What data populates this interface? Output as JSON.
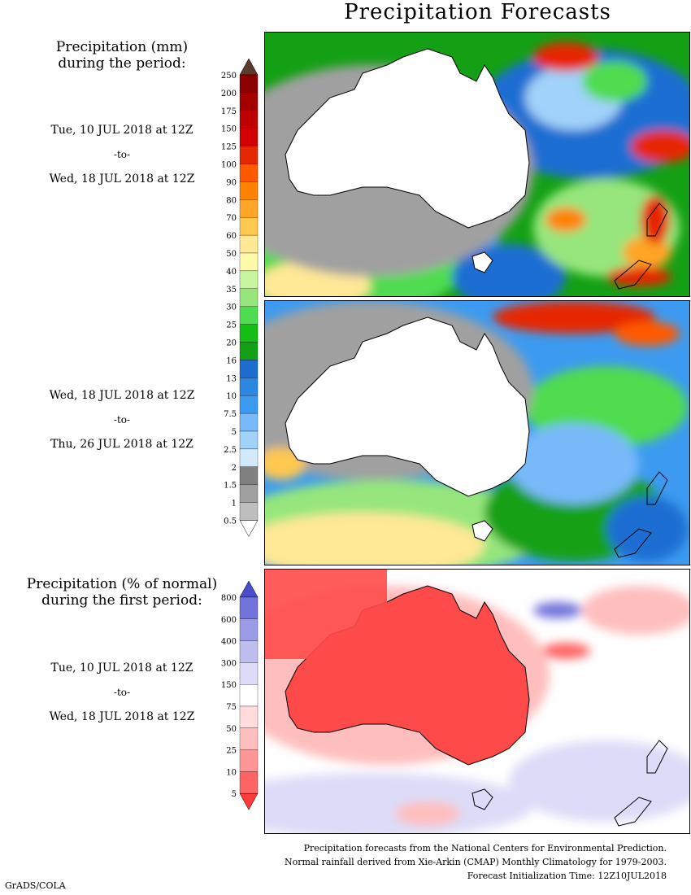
{
  "title": "Precipitation Forecasts",
  "panel1": {
    "heading": "Precipitation (mm)\nduring the period:",
    "start": "Tue, 10 JUL 2018 at 12Z",
    "sep": "-to-",
    "end": "Wed, 18 JUL 2018 at 12Z"
  },
  "panel2": {
    "start": "Wed, 18 JUL 2018 at 12Z",
    "sep": "-to-",
    "end": "Thu, 26 JUL 2018 at 12Z"
  },
  "panel3": {
    "heading": "Precipitation (% of normal)\nduring the first period:",
    "start": "Tue, 10 JUL 2018 at 12Z",
    "sep": "-to-",
    "end": "Wed, 18 JUL 2018 at 12Z"
  },
  "mm_scale": {
    "labels": [
      "250",
      "200",
      "175",
      "150",
      "125",
      "100",
      "90",
      "80",
      "70",
      "60",
      "50",
      "40",
      "35",
      "30",
      "25",
      "20",
      "16",
      "13",
      "10",
      "7.5",
      "5",
      "2.5",
      "2",
      "1.5",
      "1",
      "0.5"
    ],
    "colors": [
      "#5a3a2a",
      "#8b0000",
      "#a50000",
      "#be0000",
      "#d20000",
      "#e62800",
      "#ff5a00",
      "#ff8200",
      "#ffa528",
      "#ffc850",
      "#ffe896",
      "#fffaaa",
      "#c8f5a0",
      "#96e67d",
      "#50dc50",
      "#14be14",
      "#14a014",
      "#1e6ed2",
      "#2d87e1",
      "#3c9bf0",
      "#78b9fa",
      "#a0d2fa",
      "#d2ebfa",
      "#808080",
      "#a0a0a0",
      "#bebebe",
      "#ffffff"
    ]
  },
  "pct_scale": {
    "labels": [
      "800",
      "600",
      "400",
      "300",
      "150",
      "75",
      "50",
      "25",
      "10",
      "5"
    ],
    "colors": [
      "#4b4bcd",
      "#7373dc",
      "#9b9be6",
      "#bebef0",
      "#dcdcf8",
      "#ffffff",
      "#ffdcdc",
      "#ffbebe",
      "#ff9696",
      "#ff6464",
      "#ff3c3c"
    ]
  },
  "footer": {
    "line1": "Precipitation forecasts from the National Centers for Environmental Prediction.",
    "line2": "Normal rainfall derived from Xie-Arkin (CMAP) Monthly Climatology for 1979-2003.",
    "line3": "Forecast Initialization Time: 12Z10JUL2018"
  },
  "credit": "GrADS/COLA"
}
